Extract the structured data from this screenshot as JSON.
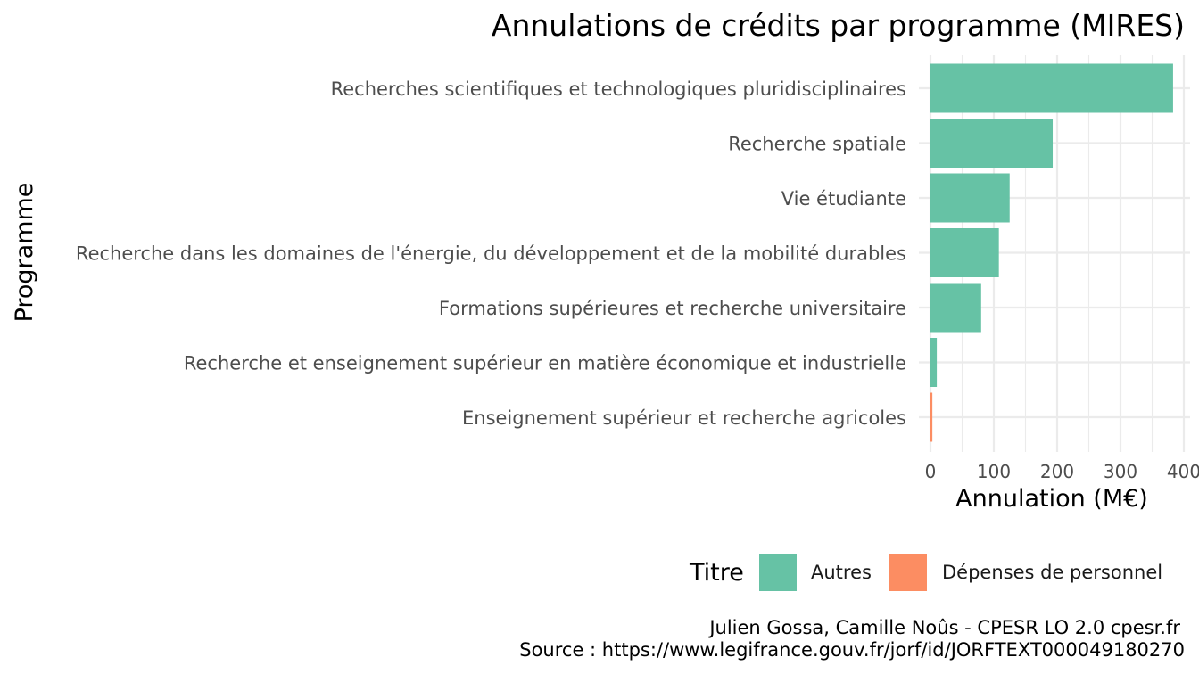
{
  "chart_data": {
    "type": "bar",
    "orientation": "horizontal",
    "title": "Annulations de crédits par programme (MIRES)",
    "xlabel": "Annulation (M€)",
    "ylabel": "Programme",
    "xlim": [
      0,
      400
    ],
    "xticks": [
      "0",
      "100",
      "200",
      "300",
      "400"
    ],
    "grid": true,
    "legend_position": "bottom-right",
    "legend_title": "Titre",
    "legend": [
      {
        "label": "Autres",
        "color": "#66c2a5"
      },
      {
        "label": "Dépenses de personnel",
        "color": "#fc8d62"
      }
    ],
    "bars": [
      {
        "category": "Recherches scientifiques et technologiques pluridisciplinaires",
        "value": 383,
        "group": "Autres",
        "color": "#66c2a5"
      },
      {
        "category": "Recherche spatiale",
        "value": 193,
        "group": "Autres",
        "color": "#66c2a5"
      },
      {
        "category": "Vie étudiante",
        "value": 125,
        "group": "Autres",
        "color": "#66c2a5"
      },
      {
        "category": "Recherche dans les domaines de l'énergie, du développement et de la mobilité durables",
        "value": 108,
        "group": "Autres",
        "color": "#66c2a5"
      },
      {
        "category": "Formations supérieures et recherche universitaire",
        "value": 80,
        "group": "Autres",
        "color": "#66c2a5"
      },
      {
        "category": "Recherche et enseignement supérieur en matière économique et industrielle",
        "value": 10,
        "group": "Autres",
        "color": "#66c2a5"
      },
      {
        "category": "Enseignement supérieur et recherche agricoles",
        "value": 3,
        "group": "Dépenses de personnel",
        "color": "#fc8d62"
      }
    ],
    "caption": [
      "Julien Gossa, Camille Noûs - CPESR LO 2.0 cpesr.fr",
      "Source : https://www.legifrance.gouv.fr/jorf/id/JORFTEXT000049180270"
    ]
  }
}
